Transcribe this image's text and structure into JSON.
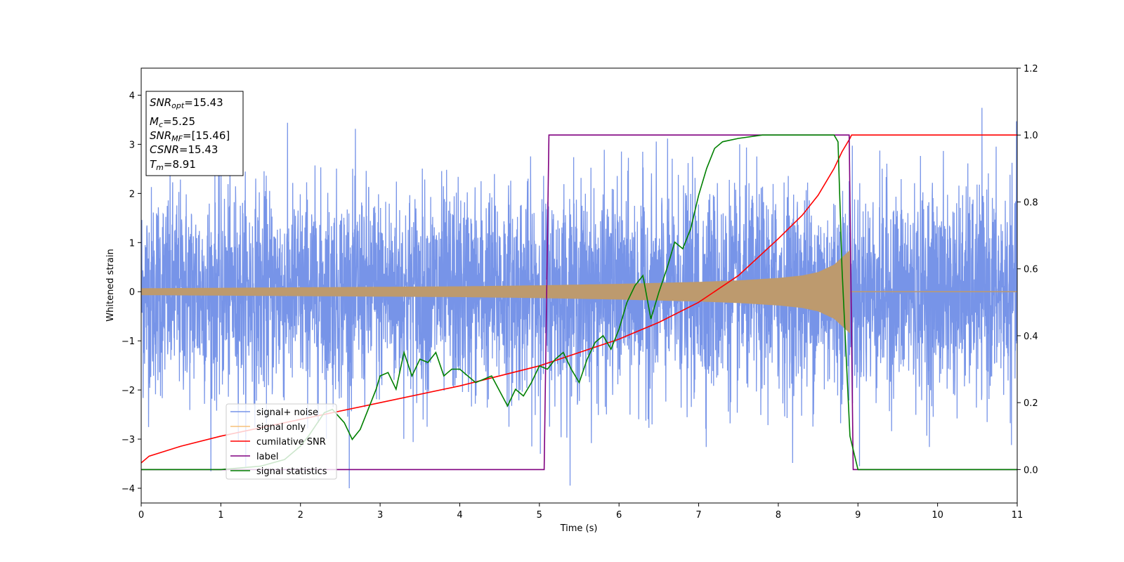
{
  "chart_data": {
    "type": "line",
    "title": "",
    "xlabel": "Time (s)",
    "ylabel": "Whitened strain",
    "xlim": [
      0,
      11
    ],
    "ylim_left": [
      -4.3,
      4.55
    ],
    "ylim_right": [
      -0.1,
      1.2
    ],
    "x_ticks": [
      0,
      1,
      2,
      3,
      4,
      5,
      6,
      7,
      8,
      9,
      10,
      11
    ],
    "y_left_ticks": [
      -4,
      -3,
      -2,
      -1,
      0,
      1,
      2,
      3,
      4
    ],
    "y_right_ticks": [
      "0.0",
      "0.2",
      "0.4",
      "0.6",
      "0.8",
      "1.0",
      "1.2"
    ],
    "grid": false,
    "legend_position": "lower-left",
    "info_box": {
      "snr_opt": {
        "symbol": "SNR",
        "sub": "opt",
        "value": "=15.43"
      },
      "mc": {
        "symbol": "M",
        "sub": "c",
        "value": "=5.25"
      },
      "snr_mf": {
        "symbol": "SNR",
        "sub": "MF",
        "value": "=[15.46]"
      },
      "csnr": {
        "symbol": "CSNR",
        "value": "=15.43"
      },
      "tm": {
        "symbol": "T",
        "sub": "m",
        "value": "=8.91"
      }
    },
    "series": [
      {
        "name": "signal+ noise",
        "axis": "left",
        "color": "#7794e8",
        "description": "whitened strain noise, amplitude roughly ±2, spikes to ±4",
        "x_range": [
          0,
          11
        ]
      },
      {
        "name": "signal only",
        "axis": "left",
        "color": "#f5c07a",
        "envelope_x": [
          0,
          1,
          2,
          3,
          4,
          5,
          6,
          7,
          7.5,
          8,
          8.3,
          8.5,
          8.7,
          8.8,
          8.9
        ],
        "envelope_amp": [
          0.07,
          0.08,
          0.09,
          0.1,
          0.11,
          0.13,
          0.16,
          0.2,
          0.23,
          0.28,
          0.33,
          0.4,
          0.55,
          0.7,
          0.85
        ]
      },
      {
        "name": "cumilative SNR",
        "axis": "right",
        "color": "#ff0000",
        "x": [
          0,
          0.1,
          0.5,
          1,
          2,
          3,
          4,
          5,
          6,
          6.5,
          7,
          7.5,
          8,
          8.3,
          8.5,
          8.7,
          8.8,
          8.9,
          8.92,
          9,
          10,
          11
        ],
        "values": [
          0.02,
          0.04,
          0.07,
          0.1,
          0.15,
          0.2,
          0.25,
          0.31,
          0.39,
          0.44,
          0.5,
          0.58,
          0.69,
          0.76,
          0.82,
          0.9,
          0.95,
          0.99,
          1.0,
          1.0,
          1.0,
          1.0
        ]
      },
      {
        "name": "label",
        "axis": "right",
        "color": "#800080",
        "x": [
          0,
          5.06,
          5.12,
          8.89,
          8.94,
          11
        ],
        "values": [
          0,
          0,
          1,
          1,
          0,
          0
        ]
      },
      {
        "name": "signal statistics",
        "axis": "right",
        "color": "#008000",
        "x": [
          0,
          1,
          1.5,
          1.8,
          2.0,
          2.1,
          2.3,
          2.4,
          2.55,
          2.65,
          2.75,
          2.85,
          2.95,
          3.0,
          3.1,
          3.2,
          3.3,
          3.4,
          3.5,
          3.6,
          3.7,
          3.8,
          3.9,
          4.0,
          4.2,
          4.4,
          4.6,
          4.7,
          4.8,
          4.9,
          5.0,
          5.1,
          5.2,
          5.3,
          5.4,
          5.5,
          5.6,
          5.7,
          5.8,
          5.9,
          6.0,
          6.1,
          6.2,
          6.3,
          6.4,
          6.5,
          6.6,
          6.7,
          6.8,
          6.9,
          7.0,
          7.1,
          7.2,
          7.3,
          7.5,
          7.8,
          8.1,
          8.5,
          8.7,
          8.75,
          8.8,
          8.9,
          9.0,
          9.5,
          10,
          11
        ],
        "values": [
          0.0,
          0.0,
          0.01,
          0.03,
          0.07,
          0.1,
          0.17,
          0.18,
          0.14,
          0.09,
          0.12,
          0.18,
          0.24,
          0.28,
          0.29,
          0.24,
          0.35,
          0.28,
          0.33,
          0.32,
          0.35,
          0.28,
          0.3,
          0.3,
          0.26,
          0.28,
          0.19,
          0.24,
          0.22,
          0.26,
          0.31,
          0.3,
          0.33,
          0.35,
          0.3,
          0.26,
          0.33,
          0.38,
          0.4,
          0.36,
          0.42,
          0.5,
          0.55,
          0.58,
          0.45,
          0.53,
          0.6,
          0.68,
          0.66,
          0.72,
          0.82,
          0.9,
          0.96,
          0.98,
          0.99,
          1.0,
          1.0,
          1.0,
          1.0,
          0.98,
          0.6,
          0.1,
          0.0,
          0.0,
          0.0,
          0.0
        ]
      }
    ]
  }
}
